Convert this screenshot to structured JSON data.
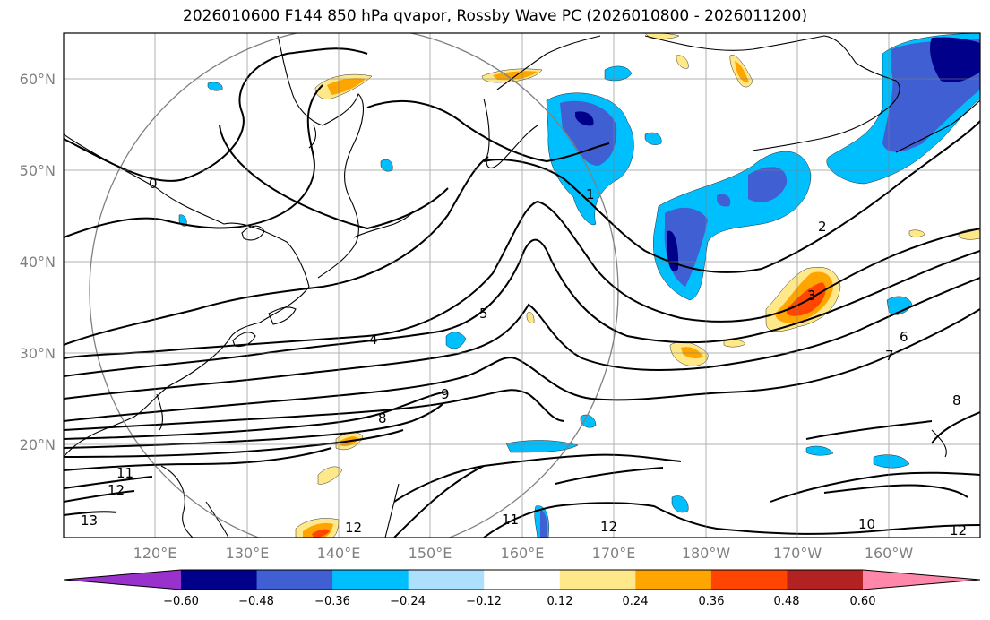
{
  "title": "2026010600 F144 850 hPa qvapor, Rossby Wave PC (2026010800 - 2026011200)",
  "chart_data": {
    "type": "contour-map",
    "lat_ticks": [
      "60°N",
      "50°N",
      "40°N",
      "30°N",
      "20°N"
    ],
    "lon_ticks": [
      "120°E",
      "130°E",
      "140°E",
      "150°E",
      "160°E",
      "170°E",
      "180°W",
      "170°W",
      "160°W"
    ],
    "lon_range": [
      110,
      210
    ],
    "lat_range": [
      10,
      65
    ],
    "contour_labels": [
      "0",
      "1",
      "2",
      "3",
      "4",
      "5",
      "6",
      "7",
      "8",
      "9",
      "10",
      "11",
      "12",
      "13"
    ],
    "colorbar": {
      "ticks": [
        "−0.60",
        "−0.48",
        "−0.36",
        "−0.24",
        "−0.12",
        "0.12",
        "0.24",
        "0.36",
        "0.48",
        "0.60"
      ],
      "colors": [
        "#9932CC",
        "#00008B",
        "#3F5FD3",
        "#00BFFF",
        "#ADDFFF",
        "#FFFFFF",
        "#FFE88A",
        "#FFA500",
        "#FF4500",
        "#B22222",
        "#FF88AA"
      ]
    }
  }
}
